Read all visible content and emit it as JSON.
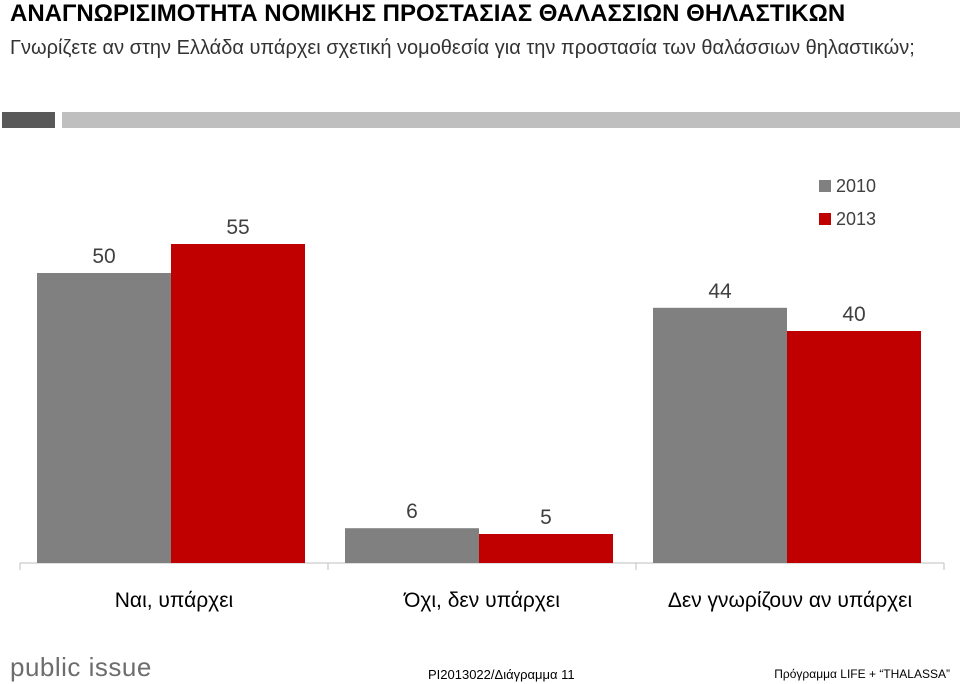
{
  "header": {
    "title": "ΑΝΑΓΝΩΡΙΣΙΜΟΤΗΤΑ ΝΟΜΙΚΗΣ ΠΡΟΣΤΑΣΙΑΣ ΘΑΛΑΣΣΙΩΝ ΘΗΛΑΣΤΙΚΩΝ",
    "subtitle": "Γνωρίζετε αν στην Ελλάδα υπάρχει σχετική νομοθεσία για την προστασία των θαλάσσιων θηλαστικών;"
  },
  "colors": {
    "series_2010": "#808080",
    "series_2013": "#c00000",
    "band_dark": "#595959",
    "band_light": "#bfbfbf"
  },
  "chart_data": {
    "type": "bar",
    "title": "",
    "xlabel": "",
    "ylabel": "",
    "categories": [
      "Ναι, υπάρχει",
      "Όχι, δεν υπάρχει",
      "Δεν γνωρίζουν αν υπάρχει"
    ],
    "series": [
      {
        "name": "2010",
        "values": [
          50,
          6,
          44
        ]
      },
      {
        "name": "2013",
        "values": [
          55,
          5,
          40
        ]
      }
    ],
    "ylim": [
      0,
      60
    ],
    "grid": false,
    "legend": "top-right",
    "data_labels": true
  },
  "footer": {
    "logo": "public issue",
    "code": "PI2013022/Διάγραμμα 11",
    "program": "Πρόγραμμα LIFE + “THALASSA”"
  }
}
